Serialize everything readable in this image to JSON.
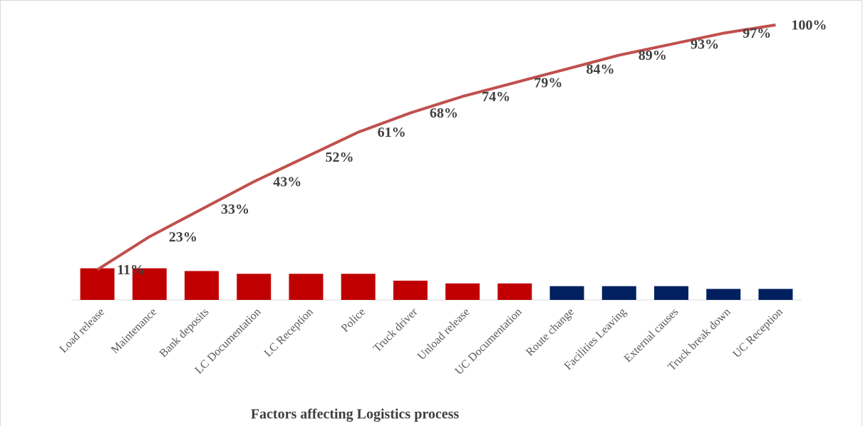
{
  "chart_data": {
    "type": "pareto",
    "xlabel": "Factors affecting Logistics process",
    "categories": [
      "Load release",
      "Maintenance",
      "Bank deposits",
      "LC Documentation",
      "LC Reception",
      "Police",
      "Truck driver",
      "Unload release",
      "UC Documentation",
      "Route change",
      "Facilities Leaving",
      "External causes",
      "Truck break down",
      "UC Reception"
    ],
    "series": [
      {
        "type": "bar",
        "colors": [
          "#c00000",
          "#c00000",
          "#c00000",
          "#c00000",
          "#c00000",
          "#c00000",
          "#c00000",
          "#c00000",
          "#c00000",
          "#002060",
          "#002060",
          "#002060",
          "#002060",
          "#002060"
        ],
        "values": [
          11.5,
          11.5,
          10.5,
          9.5,
          9.5,
          9.5,
          7,
          6,
          6,
          5,
          5,
          5,
          4,
          4
        ]
      },
      {
        "type": "line",
        "color": "#c0504d",
        "values": [
          11,
          23,
          33,
          43,
          52,
          61,
          68,
          74,
          79,
          84,
          89,
          93,
          97,
          100
        ],
        "value_labels": [
          "11%",
          "23%",
          "33%",
          "43%",
          "52%",
          "61%",
          "68%",
          "74%",
          "79%",
          "84%",
          "89%",
          "93%",
          "97%",
          "100%"
        ]
      }
    ],
    "ylim": [
      0,
      100
    ]
  }
}
